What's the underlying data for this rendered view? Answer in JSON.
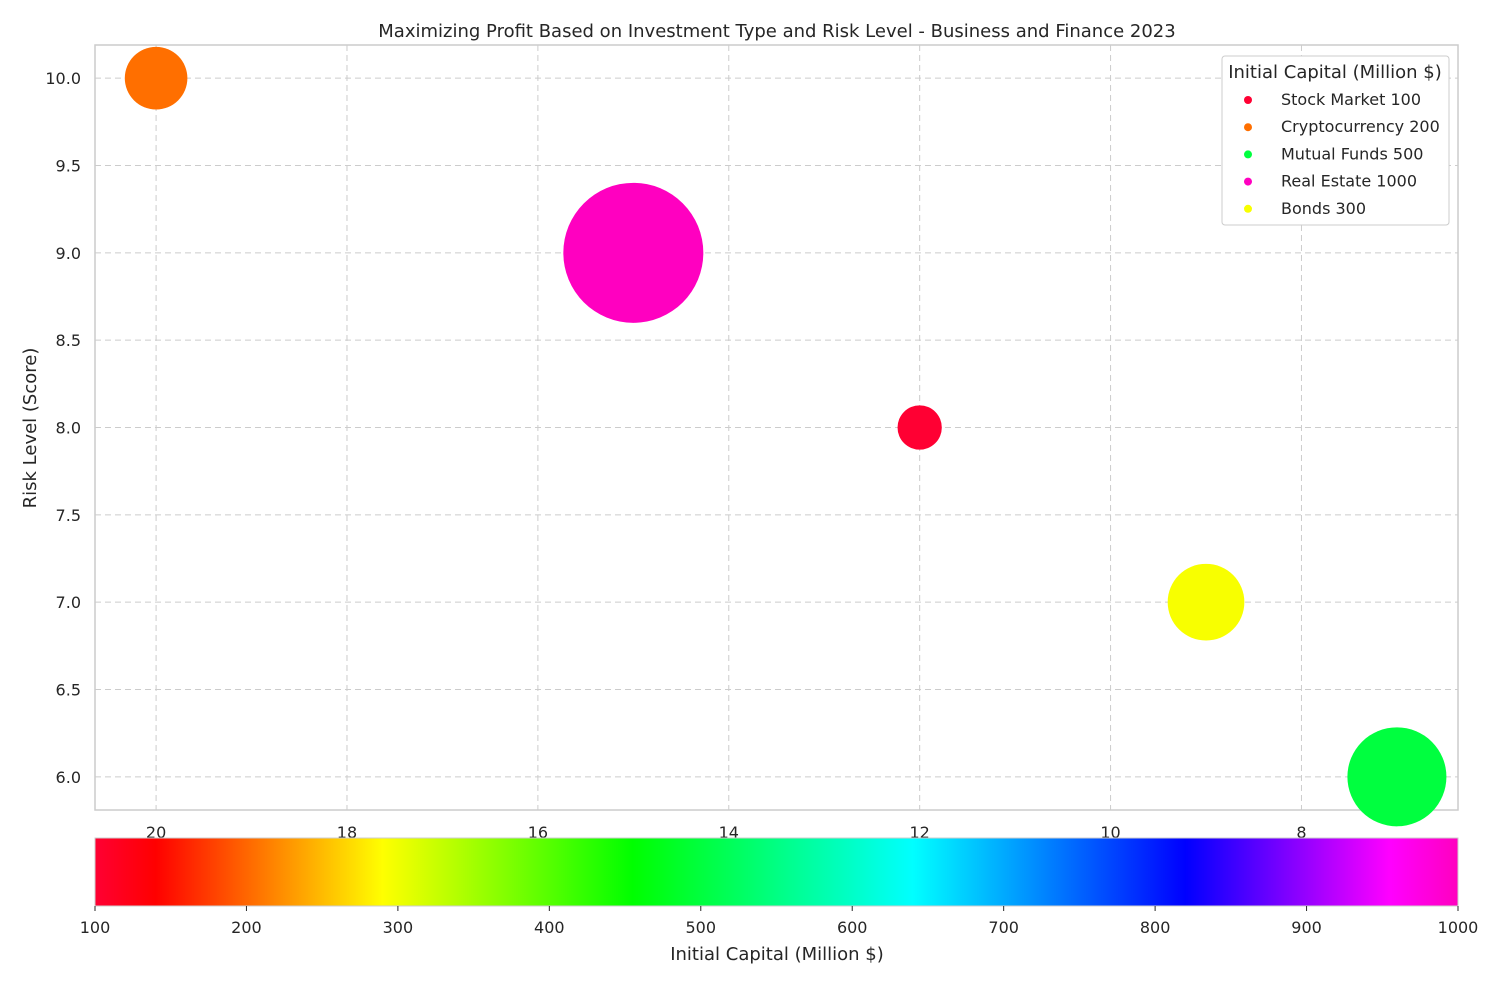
{
  "chart_data": {
    "type": "scatter",
    "title": "Maximizing Profit Based on Investment Type and Risk Level - Business and Finance 2023",
    "xlabel": "",
    "ylabel": "Risk Level (Score)",
    "x_inverted": true,
    "xlim": [
      20.64,
      6.36
    ],
    "ylim": [
      5.81,
      10.19
    ],
    "x_ticks": [
      20,
      18,
      16,
      14,
      12,
      10,
      8
    ],
    "y_ticks": [
      6.0,
      6.5,
      7.0,
      7.5,
      8.0,
      8.5,
      9.0,
      9.5,
      10.0
    ],
    "y_tick_labels": [
      "6.0",
      "6.5",
      "7.0",
      "7.5",
      "8.0",
      "8.5",
      "9.0",
      "9.5",
      "10.0"
    ],
    "grid": true,
    "size_variable": "Initial Capital (Million $)",
    "color_variable": "Initial Capital (Million $)",
    "series": [
      {
        "name": "Stock Market 100",
        "x": 12,
        "y": 8.0,
        "capital": 100,
        "color": "#ff0033"
      },
      {
        "name": "Cryptocurrency 200",
        "x": 20,
        "y": 10.0,
        "capital": 200,
        "color": "#ff6f00"
      },
      {
        "name": "Mutual Funds 500",
        "x": 7,
        "y": 6.0,
        "capital": 500,
        "color": "#00ff3f"
      },
      {
        "name": "Real Estate 1000",
        "x": 15,
        "y": 9.0,
        "capital": 1000,
        "color": "#ff00c0"
      },
      {
        "name": "Bonds 300",
        "x": 9,
        "y": 7.0,
        "capital": 300,
        "color": "#f8ff00"
      }
    ],
    "legend": {
      "title": "Initial Capital (Million $)",
      "placement": "top-right"
    },
    "colorbar": {
      "label": "Initial Capital (Million $)",
      "range": [
        100,
        1000
      ],
      "ticks": [
        100,
        200,
        300,
        400,
        500,
        600,
        700,
        800,
        900,
        1000
      ],
      "stops": [
        {
          "value": 100,
          "color": "#ff0033"
        },
        {
          "value": 140,
          "color": "#ff0000"
        },
        {
          "value": 290,
          "color": "#ffff00"
        },
        {
          "value": 455,
          "color": "#00ff00"
        },
        {
          "value": 640,
          "color": "#00ffff"
        },
        {
          "value": 820,
          "color": "#0000ff"
        },
        {
          "value": 955,
          "color": "#ff00ff"
        },
        {
          "value": 1000,
          "color": "#ff00bf"
        }
      ]
    }
  }
}
